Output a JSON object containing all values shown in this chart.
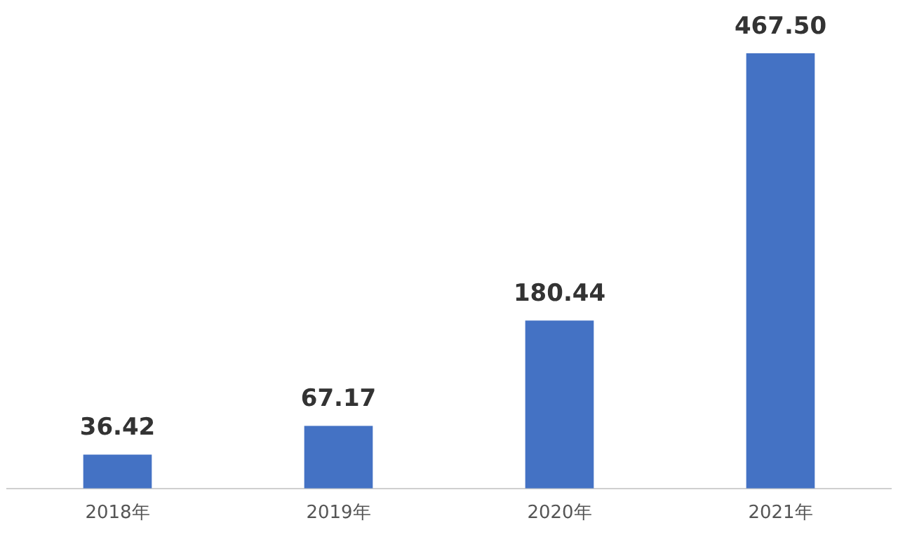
{
  "chart_data": {
    "type": "bar",
    "categories": [
      "2018年",
      "2019年",
      "2020年",
      "2021年"
    ],
    "values": [
      36.42,
      67.17,
      180.44,
      467.5
    ],
    "value_labels": [
      "36.42",
      "67.17",
      "180.44",
      "467.50"
    ],
    "color": "#4472c4",
    "grid": false,
    "legend": false
  }
}
